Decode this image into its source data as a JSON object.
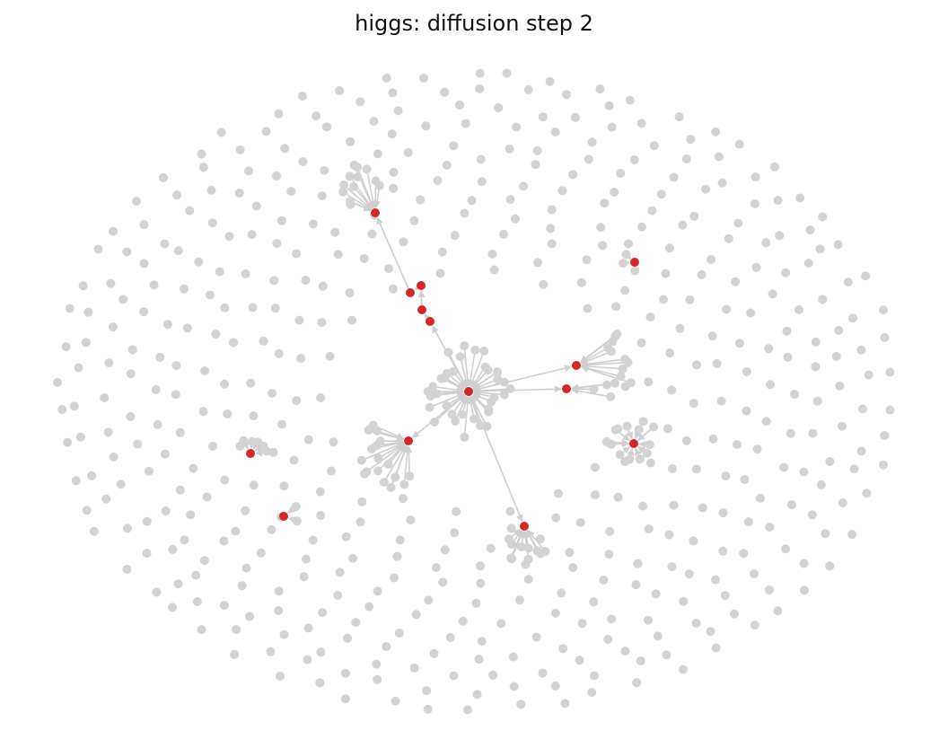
{
  "title": "higgs: diffusion step 2",
  "colors": {
    "inactive_node": "#d3d3d3",
    "active_node": "#d62728",
    "edge": "#cfcfcf",
    "background": "#ffffff"
  },
  "network": {
    "layout": "spring",
    "directed": true,
    "active_count": 15,
    "legend": "none"
  }
}
